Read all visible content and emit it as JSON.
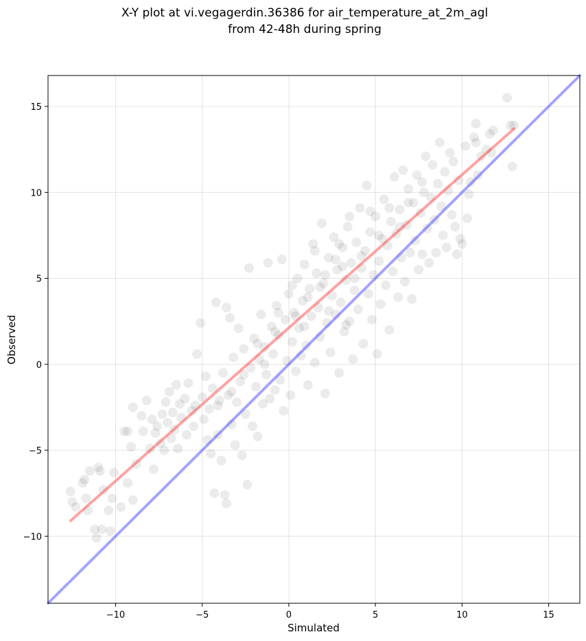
{
  "chart_data": {
    "type": "scatter",
    "title": "X-Y plot at vi.vegagerdin.36386 for air_temperature_at_2m_agl",
    "subtitle": "from 42-48h during spring",
    "xlabel": "Simulated",
    "ylabel": "Observed",
    "xlim": [
      -13.9,
      16.8
    ],
    "ylim": [
      -13.9,
      16.8
    ],
    "x_ticks": [
      -10,
      -5,
      0,
      5,
      10,
      15
    ],
    "y_ticks": [
      -10,
      -5,
      0,
      5,
      10,
      15
    ],
    "x_tick_labels": [
      "−10",
      "−5",
      "0",
      "5",
      "10",
      "15"
    ],
    "y_tick_labels": [
      "−10",
      "−5",
      "0",
      "5",
      "10",
      "15"
    ],
    "grid": true,
    "marker_color": "#000000",
    "marker_opacity": 0.08,
    "lines": [
      {
        "kind": "fit",
        "color": "#ff3333",
        "opacity": 0.45,
        "x": [
          -12.6,
          13.0
        ],
        "y": [
          -9.1,
          13.7
        ]
      },
      {
        "kind": "identity",
        "color": "#3333ff",
        "opacity": 0.45,
        "x": [
          -13.9,
          16.8
        ],
        "y": [
          -13.9,
          16.8
        ]
      }
    ],
    "series": [
      {
        "values": [
          {
            "x": -12.6,
            "y": -7.4
          },
          {
            "x": -12.5,
            "y": -8.0
          },
          {
            "x": -12.3,
            "y": -8.3
          },
          {
            "x": -11.9,
            "y": -6.9
          },
          {
            "x": -11.8,
            "y": -6.7
          },
          {
            "x": -11.7,
            "y": -7.8
          },
          {
            "x": -11.6,
            "y": -8.5
          },
          {
            "x": -11.5,
            "y": -6.2
          },
          {
            "x": -11.2,
            "y": -9.6
          },
          {
            "x": -11.1,
            "y": -10.1
          },
          {
            "x": -11.0,
            "y": -6.0
          },
          {
            "x": -10.9,
            "y": -6.2
          },
          {
            "x": -10.8,
            "y": -9.6
          },
          {
            "x": -10.7,
            "y": -7.3
          },
          {
            "x": -10.4,
            "y": -8.5
          },
          {
            "x": -10.3,
            "y": -9.7
          },
          {
            "x": -10.2,
            "y": -7.8
          },
          {
            "x": -10.1,
            "y": -6.3
          },
          {
            "x": -9.7,
            "y": -8.3
          },
          {
            "x": -9.5,
            "y": -3.9
          },
          {
            "x": -9.3,
            "y": -3.9
          },
          {
            "x": -9.3,
            "y": -6.9
          },
          {
            "x": -9.1,
            "y": -4.8
          },
          {
            "x": -9.0,
            "y": -7.9
          },
          {
            "x": -9.0,
            "y": -2.5
          },
          {
            "x": -8.8,
            "y": -5.8
          },
          {
            "x": -8.5,
            "y": -3.0
          },
          {
            "x": -8.4,
            "y": -3.9
          },
          {
            "x": -8.2,
            "y": -2.1
          },
          {
            "x": -8.0,
            "y": -4.9
          },
          {
            "x": -7.9,
            "y": -3.2
          },
          {
            "x": -7.8,
            "y": -6.1
          },
          {
            "x": -7.7,
            "y": -4.0
          },
          {
            "x": -7.6,
            "y": -3.6
          },
          {
            "x": -7.4,
            "y": -4.6
          },
          {
            "x": -7.3,
            "y": -2.9
          },
          {
            "x": -7.2,
            "y": -5.0
          },
          {
            "x": -7.1,
            "y": -2.2
          },
          {
            "x": -7.0,
            "y": -3.4
          },
          {
            "x": -6.9,
            "y": -1.6
          },
          {
            "x": -6.8,
            "y": -4.3
          },
          {
            "x": -6.7,
            "y": -2.8
          },
          {
            "x": -6.6,
            "y": -3.8
          },
          {
            "x": -6.5,
            "y": -1.2
          },
          {
            "x": -6.4,
            "y": -4.9
          },
          {
            "x": -6.3,
            "y": -2.3
          },
          {
            "x": -6.2,
            "y": -3.1
          },
          {
            "x": -6.0,
            "y": -2.0
          },
          {
            "x": -5.9,
            "y": -4.1
          },
          {
            "x": -5.8,
            "y": -1.1
          },
          {
            "x": -5.6,
            "y": -2.7
          },
          {
            "x": -5.5,
            "y": -3.6
          },
          {
            "x": -5.4,
            "y": -2.4
          },
          {
            "x": -5.3,
            "y": 0.6
          },
          {
            "x": -5.1,
            "y": 2.4
          },
          {
            "x": -5.0,
            "y": -1.9
          },
          {
            "x": -4.9,
            "y": -3.2
          },
          {
            "x": -4.8,
            "y": -0.7
          },
          {
            "x": -4.7,
            "y": -4.4
          },
          {
            "x": -4.6,
            "y": -2.6
          },
          {
            "x": -4.5,
            "y": -5.2
          },
          {
            "x": -4.4,
            "y": -1.4
          },
          {
            "x": -4.3,
            "y": -7.5
          },
          {
            "x": -4.2,
            "y": 3.6
          },
          {
            "x": -4.1,
            "y": -4.1
          },
          {
            "x": -4.0,
            "y": -2.1
          },
          {
            "x": -3.9,
            "y": -5.6
          },
          {
            "x": -3.8,
            "y": -0.5
          },
          {
            "x": -3.7,
            "y": -7.6
          },
          {
            "x": -3.6,
            "y": -8.1
          },
          {
            "x": -3.6,
            "y": 3.3
          },
          {
            "x": -3.5,
            "y": -1.8
          },
          {
            "x": -3.4,
            "y": 2.7
          },
          {
            "x": -3.3,
            "y": -3.5
          },
          {
            "x": -3.2,
            "y": 0.4
          },
          {
            "x": -3.1,
            "y": -4.7
          },
          {
            "x": -3.0,
            "y": -2.2
          },
          {
            "x": -2.9,
            "y": 2.1
          },
          {
            "x": -2.8,
            "y": -1.0
          },
          {
            "x": -2.7,
            "y": -5.3
          },
          {
            "x": -2.6,
            "y": 0.9
          },
          {
            "x": -2.5,
            "y": -2.9
          },
          {
            "x": -2.4,
            "y": -7.0
          },
          {
            "x": -2.3,
            "y": 5.6
          },
          {
            "x": -2.2,
            "y": -0.2
          },
          {
            "x": -2.1,
            "y": -3.6
          },
          {
            "x": -2.0,
            "y": 1.5
          },
          {
            "x": -1.9,
            "y": -1.3
          },
          {
            "x": -1.8,
            "y": -4.2
          },
          {
            "x": -1.7,
            "y": 0.3
          },
          {
            "x": -1.6,
            "y": 2.9
          },
          {
            "x": -1.5,
            "y": -2.3
          },
          {
            "x": -1.4,
            "y": 1.0
          },
          {
            "x": -1.3,
            "y": -0.6
          },
          {
            "x": -1.2,
            "y": 5.9
          },
          {
            "x": -1.1,
            "y": -2.0
          },
          {
            "x": -1.0,
            "y": 2.2
          },
          {
            "x": -0.9,
            "y": 0.6
          },
          {
            "x": -0.8,
            "y": -1.5
          },
          {
            "x": -0.7,
            "y": 3.4
          },
          {
            "x": -0.6,
            "y": 1.7
          },
          {
            "x": -0.5,
            "y": -0.9
          },
          {
            "x": -0.4,
            "y": 6.1
          },
          {
            "x": -0.3,
            "y": -2.7
          },
          {
            "x": -0.2,
            "y": 2.6
          },
          {
            "x": -0.1,
            "y": 0.2
          },
          {
            "x": 0.0,
            "y": 4.1
          },
          {
            "x": 0.1,
            "y": -1.8
          },
          {
            "x": 0.2,
            "y": 1.3
          },
          {
            "x": 0.3,
            "y": 3.0
          },
          {
            "x": 0.4,
            "y": -0.4
          },
          {
            "x": 0.5,
            "y": 5.0
          },
          {
            "x": 0.6,
            "y": 2.1
          },
          {
            "x": 0.7,
            "y": 0.5
          },
          {
            "x": 0.8,
            "y": 3.7
          },
          {
            "x": 0.9,
            "y": 5.8
          },
          {
            "x": 1.0,
            "y": 1.1
          },
          {
            "x": 1.1,
            "y": -1.2
          },
          {
            "x": 1.2,
            "y": 4.4
          },
          {
            "x": 1.3,
            "y": 2.8
          },
          {
            "x": 1.4,
            "y": 7.0
          },
          {
            "x": 1.5,
            "y": 0.1
          },
          {
            "x": 1.6,
            "y": 5.3
          },
          {
            "x": 1.7,
            "y": 3.3
          },
          {
            "x": 1.8,
            "y": 1.6
          },
          {
            "x": 1.9,
            "y": 8.2
          },
          {
            "x": 2.0,
            "y": 4.7
          },
          {
            "x": 2.1,
            "y": -1.7
          },
          {
            "x": 2.2,
            "y": 2.4
          },
          {
            "x": 2.3,
            "y": 6.2
          },
          {
            "x": 2.4,
            "y": 0.7
          },
          {
            "x": 2.5,
            "y": 4.0
          },
          {
            "x": 2.6,
            "y": 7.4
          },
          {
            "x": 2.7,
            "y": 2.9
          },
          {
            "x": 2.8,
            "y": 5.5
          },
          {
            "x": 2.9,
            "y": -0.5
          },
          {
            "x": 3.0,
            "y": 3.6
          },
          {
            "x": 3.1,
            "y": 6.8
          },
          {
            "x": 3.2,
            "y": 1.9
          },
          {
            "x": 3.3,
            "y": 4.9
          },
          {
            "x": 3.4,
            "y": 8.0
          },
          {
            "x": 3.5,
            "y": 2.5
          },
          {
            "x": 3.6,
            "y": 5.9
          },
          {
            "x": 3.7,
            "y": 0.3
          },
          {
            "x": 3.8,
            "y": 4.3
          },
          {
            "x": 3.9,
            "y": 7.1
          },
          {
            "x": 4.0,
            "y": 3.2
          },
          {
            "x": 4.1,
            "y": 9.1
          },
          {
            "x": 4.2,
            "y": 5.6
          },
          {
            "x": 4.3,
            "y": 1.2
          },
          {
            "x": 4.4,
            "y": 6.6
          },
          {
            "x": 4.5,
            "y": 10.4
          },
          {
            "x": 4.6,
            "y": 4.1
          },
          {
            "x": 4.7,
            "y": 7.7
          },
          {
            "x": 4.8,
            "y": 2.6
          },
          {
            "x": 4.9,
            "y": 5.2
          },
          {
            "x": 5.0,
            "y": 8.6
          },
          {
            "x": 5.1,
            "y": 0.6
          },
          {
            "x": 5.2,
            "y": 6.0
          },
          {
            "x": 5.3,
            "y": 3.5
          },
          {
            "x": 5.4,
            "y": 7.3
          },
          {
            "x": 5.5,
            "y": 9.6
          },
          {
            "x": 5.6,
            "y": 4.6
          },
          {
            "x": 5.7,
            "y": 6.9
          },
          {
            "x": 5.8,
            "y": 2.0
          },
          {
            "x": 5.9,
            "y": 8.3
          },
          {
            "x": 6.0,
            "y": 5.4
          },
          {
            "x": 6.1,
            "y": 10.9
          },
          {
            "x": 6.2,
            "y": 7.6
          },
          {
            "x": 6.3,
            "y": 3.9
          },
          {
            "x": 6.4,
            "y": 9.0
          },
          {
            "x": 6.5,
            "y": 6.2
          },
          {
            "x": 6.6,
            "y": 11.3
          },
          {
            "x": 6.7,
            "y": 4.8
          },
          {
            "x": 6.8,
            "y": 8.1
          },
          {
            "x": 6.9,
            "y": 10.2
          },
          {
            "x": 7.0,
            "y": 6.5
          },
          {
            "x": 7.1,
            "y": 3.8
          },
          {
            "x": 7.2,
            "y": 9.4
          },
          {
            "x": 7.3,
            "y": 7.2
          },
          {
            "x": 7.4,
            "y": 11.0
          },
          {
            "x": 7.5,
            "y": 5.5
          },
          {
            "x": 7.6,
            "y": 8.8
          },
          {
            "x": 7.7,
            "y": 6.4
          },
          {
            "x": 7.8,
            "y": 10.0
          },
          {
            "x": 7.9,
            "y": 12.1
          },
          {
            "x": 8.0,
            "y": 7.9
          },
          {
            "x": 8.1,
            "y": 5.9
          },
          {
            "x": 8.2,
            "y": 9.7
          },
          {
            "x": 8.3,
            "y": 11.6
          },
          {
            "x": 8.4,
            "y": 8.4
          },
          {
            "x": 8.5,
            "y": 6.5
          },
          {
            "x": 8.6,
            "y": 10.5
          },
          {
            "x": 8.7,
            "y": 12.9
          },
          {
            "x": 8.8,
            "y": 9.2
          },
          {
            "x": 8.9,
            "y": 7.5
          },
          {
            "x": 9.0,
            "y": 11.2
          },
          {
            "x": 9.1,
            "y": 6.8
          },
          {
            "x": 9.2,
            "y": 10.1
          },
          {
            "x": 9.3,
            "y": 12.3
          },
          {
            "x": 9.4,
            "y": 8.7
          },
          {
            "x": 9.5,
            "y": 11.8
          },
          {
            "x": 9.6,
            "y": 8.0
          },
          {
            "x": 9.7,
            "y": 6.4
          },
          {
            "x": 9.8,
            "y": 10.7
          },
          {
            "x": 9.9,
            "y": 7.3
          },
          {
            "x": 10.0,
            "y": 7.0
          },
          {
            "x": 10.2,
            "y": 12.7
          },
          {
            "x": 10.3,
            "y": 8.5
          },
          {
            "x": 10.4,
            "y": 9.9
          },
          {
            "x": 10.5,
            "y": 10.6
          },
          {
            "x": 10.7,
            "y": 13.2
          },
          {
            "x": 10.8,
            "y": 12.9
          },
          {
            "x": 10.9,
            "y": 11.0
          },
          {
            "x": 11.1,
            "y": 12.1
          },
          {
            "x": 11.4,
            "y": 12.5
          },
          {
            "x": 11.6,
            "y": 13.4
          },
          {
            "x": 11.7,
            "y": 12.3
          },
          {
            "x": 12.6,
            "y": 15.5
          },
          {
            "x": 12.8,
            "y": 13.9
          },
          {
            "x": 12.9,
            "y": 11.5
          },
          {
            "x": 13.0,
            "y": 13.9
          },
          {
            "x": 10.8,
            "y": 14.0
          },
          {
            "x": 11.8,
            "y": 13.6
          },
          {
            "x": 3.5,
            "y": 8.6
          },
          {
            "x": 2.7,
            "y": 6.1
          },
          {
            "x": 1.1,
            "y": 3.9
          },
          {
            "x": 0.4,
            "y": 2.8
          },
          {
            "x": -0.8,
            "y": 1.9
          },
          {
            "x": 1.8,
            "y": 4.5
          },
          {
            "x": 2.3,
            "y": 3.1
          },
          {
            "x": 3.1,
            "y": 5.7
          },
          {
            "x": 4.2,
            "y": 6.3
          },
          {
            "x": 5.2,
            "y": 7.5
          },
          {
            "x": 6.4,
            "y": 8.0
          },
          {
            "x": 0.9,
            "y": 2.2
          },
          {
            "x": -1.4,
            "y": 0.0
          },
          {
            "x": -2.6,
            "y": -0.6
          },
          {
            "x": -3.3,
            "y": -1.6
          },
          {
            "x": -4.1,
            "y": -2.4
          },
          {
            "x": 2.1,
            "y": 5.2
          },
          {
            "x": 3.8,
            "y": 5.0
          },
          {
            "x": 4.7,
            "y": 8.9
          },
          {
            "x": 5.8,
            "y": 9.1
          },
          {
            "x": 6.9,
            "y": 9.4
          },
          {
            "x": 7.7,
            "y": 10.6
          },
          {
            "x": 0.2,
            "y": 4.6
          },
          {
            "x": 1.5,
            "y": 6.6
          },
          {
            "x": 2.9,
            "y": 7.0
          },
          {
            "x": -0.6,
            "y": 3.0
          },
          {
            "x": -1.8,
            "y": 1.2
          },
          {
            "x": 3.3,
            "y": 2.3
          }
        ]
      }
    ]
  }
}
